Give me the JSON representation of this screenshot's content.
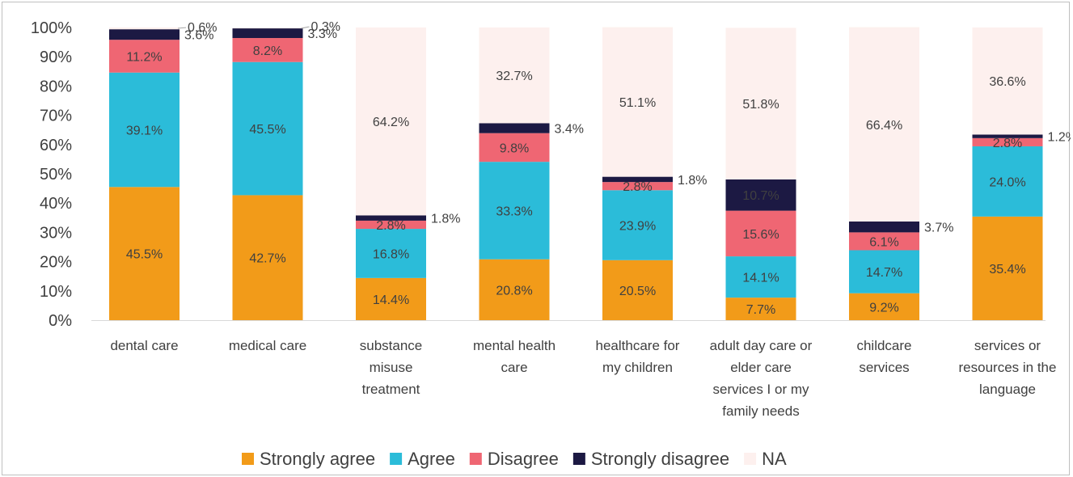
{
  "chart_data": {
    "type": "bar",
    "stacked": true,
    "percent": true,
    "ylim": [
      0,
      100
    ],
    "yticks": [
      0,
      10,
      20,
      30,
      40,
      50,
      60,
      70,
      80,
      90,
      100
    ],
    "ytick_labels": [
      "0%",
      "10%",
      "20%",
      "30%",
      "40%",
      "50%",
      "60%",
      "70%",
      "80%",
      "90%",
      "100%"
    ],
    "grid": false,
    "legend_position": "bottom",
    "categories": [
      [
        "dental care"
      ],
      [
        "medical care"
      ],
      [
        "substance",
        "misuse",
        "treatment"
      ],
      [
        "mental health",
        "care"
      ],
      [
        "healthcare for",
        "my children"
      ],
      [
        "adult day care or",
        "elder care",
        "services I or my",
        "family needs"
      ],
      [
        "childcare",
        "services"
      ],
      [
        "services or",
        "resources in the",
        "language"
      ]
    ],
    "series": [
      {
        "name": "Strongly agree",
        "color": "#F29B19",
        "values": [
          45.5,
          42.7,
          14.4,
          20.8,
          20.5,
          7.7,
          9.2,
          35.4
        ],
        "labels": [
          "45.5%",
          "42.7%",
          "14.4%",
          "20.8%",
          "20.5%",
          "7.7%",
          "9.2%",
          "35.4%"
        ]
      },
      {
        "name": "Agree",
        "color": "#2BBCD9",
        "values": [
          39.1,
          45.5,
          16.8,
          33.3,
          23.9,
          14.1,
          14.7,
          24.0
        ],
        "labels": [
          "39.1%",
          "45.5%",
          "16.8%",
          "33.3%",
          "23.9%",
          "14.1%",
          "14.7%",
          "24.0%"
        ]
      },
      {
        "name": "Disagree",
        "color": "#EF6673",
        "values": [
          11.2,
          8.2,
          2.8,
          9.8,
          2.8,
          15.6,
          6.1,
          2.8
        ],
        "labels": [
          "11.2%",
          "8.2%",
          "2.8%",
          "9.8%",
          "2.8%",
          "15.6%",
          "6.1%",
          "2.8%"
        ]
      },
      {
        "name": "Strongly disagree",
        "color": "#1C1943",
        "values": [
          3.6,
          3.3,
          1.8,
          3.4,
          1.8,
          10.7,
          3.7,
          1.2
        ],
        "labels": [
          "3.6%",
          "3.3%",
          "1.8%",
          "3.4%",
          "1.8%",
          "10.7%",
          "3.7%",
          "1.2%"
        ]
      },
      {
        "name": "NA",
        "color": "#FDF0EE",
        "values": [
          0.6,
          0.3,
          64.2,
          32.7,
          51.1,
          51.8,
          66.4,
          36.6
        ],
        "labels": [
          "0.6%",
          "0.3%",
          "64.2%",
          "32.7%",
          "51.1%",
          "51.8%",
          "66.4%",
          "36.6%"
        ]
      }
    ]
  }
}
